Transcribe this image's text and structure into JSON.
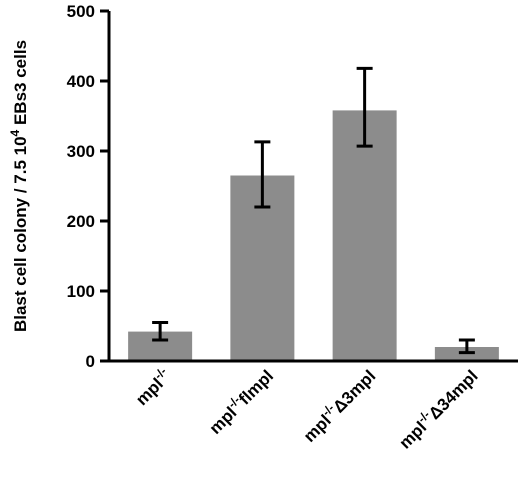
{
  "chart_data": {
    "type": "bar",
    "ylabel": "Blast cell colony / 7.5 10",
    "ylabel_sup": "4",
    "ylabel_tail": " EBs3 cells",
    "ylim": [
      0,
      500
    ],
    "yticks": [
      0,
      100,
      200,
      300,
      400,
      500
    ],
    "categories": [
      {
        "base": "mpl",
        "sup": "-/-",
        "suffix": ""
      },
      {
        "base": "mpl",
        "sup": "-/-",
        "suffix": "flmpl"
      },
      {
        "base": "mpl",
        "sup": "-/-",
        "suffix": "Δ3mpl"
      },
      {
        "base": "mpl",
        "sup": "-/-",
        "suffix": "Δ34mpl"
      }
    ],
    "values": [
      42,
      265,
      358,
      20
    ],
    "errors": [
      {
        "low": 30,
        "high": 55
      },
      {
        "low": 220,
        "high": 313
      },
      {
        "low": 307,
        "high": 418
      },
      {
        "low": 12,
        "high": 30
      }
    ],
    "bar_color": "#8c8c8c",
    "grid": false,
    "legend": "none"
  }
}
